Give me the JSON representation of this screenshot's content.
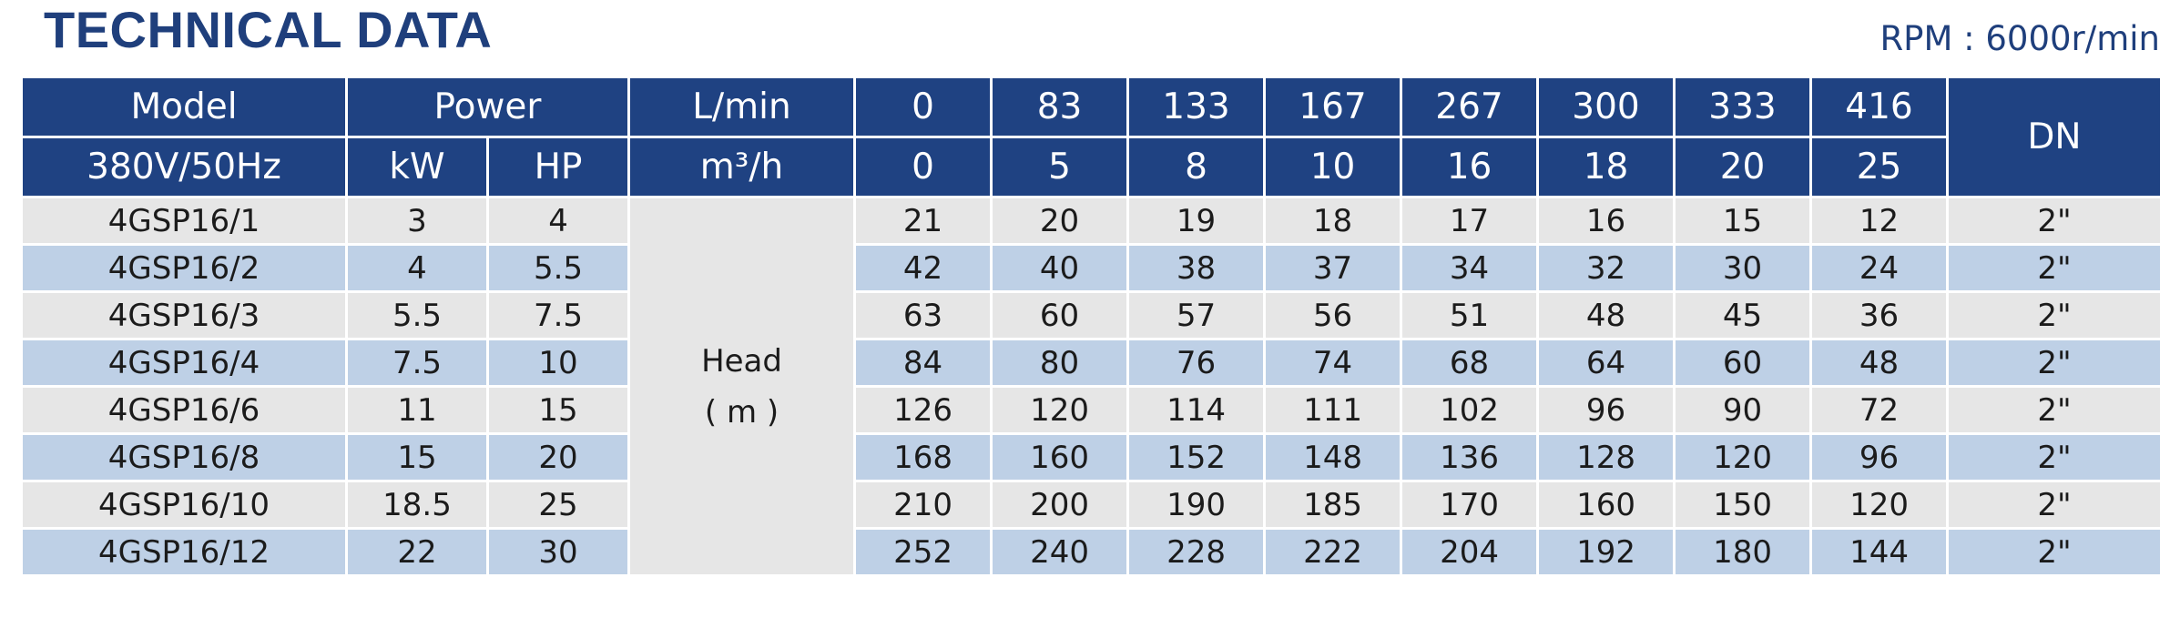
{
  "title": "TECHNICAL DATA",
  "rpm": "RPM : 6000r/min",
  "header": {
    "model": "Model",
    "power": "Power",
    "flow_lmin_label": "L/min",
    "dn": "DN",
    "voltage": "380V/50Hz",
    "kw": "kW",
    "hp": "HP",
    "flow_m3h_label": "m³/h",
    "flow_lmin": [
      "0",
      "83",
      "133",
      "167",
      "267",
      "300",
      "333",
      "416"
    ],
    "flow_m3h": [
      "0",
      "5",
      "8",
      "10",
      "16",
      "18",
      "20",
      "25"
    ]
  },
  "head_label": {
    "line1": "Head",
    "line2": "( m )"
  },
  "rows": [
    {
      "model": "4GSP16/1",
      "kw": "3",
      "hp": "4",
      "head": [
        "21",
        "20",
        "19",
        "18",
        "17",
        "16",
        "15",
        "12"
      ],
      "dn": "2\""
    },
    {
      "model": "4GSP16/2",
      "kw": "4",
      "hp": "5.5",
      "head": [
        "42",
        "40",
        "38",
        "37",
        "34",
        "32",
        "30",
        "24"
      ],
      "dn": "2\""
    },
    {
      "model": "4GSP16/3",
      "kw": "5.5",
      "hp": "7.5",
      "head": [
        "63",
        "60",
        "57",
        "56",
        "51",
        "48",
        "45",
        "36"
      ],
      "dn": "2\""
    },
    {
      "model": "4GSP16/4",
      "kw": "7.5",
      "hp": "10",
      "head": [
        "84",
        "80",
        "76",
        "74",
        "68",
        "64",
        "60",
        "48"
      ],
      "dn": "2\""
    },
    {
      "model": "4GSP16/6",
      "kw": "11",
      "hp": "15",
      "head": [
        "126",
        "120",
        "114",
        "111",
        "102",
        "96",
        "90",
        "72"
      ],
      "dn": "2\""
    },
    {
      "model": "4GSP16/8",
      "kw": "15",
      "hp": "20",
      "head": [
        "168",
        "160",
        "152",
        "148",
        "136",
        "128",
        "120",
        "96"
      ],
      "dn": "2\""
    },
    {
      "model": "4GSP16/10",
      "kw": "18.5",
      "hp": "25",
      "head": [
        "210",
        "200",
        "190",
        "185",
        "170",
        "160",
        "150",
        "120"
      ],
      "dn": "2\""
    },
    {
      "model": "4GSP16/12",
      "kw": "22",
      "hp": "30",
      "head": [
        "252",
        "240",
        "228",
        "222",
        "204",
        "192",
        "180",
        "144"
      ],
      "dn": "2\""
    }
  ]
}
